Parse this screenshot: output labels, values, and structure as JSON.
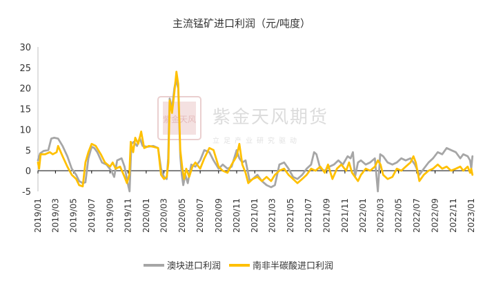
{
  "chart_data": {
    "type": "line",
    "title": "主流锰矿进口利润（元/吨度）",
    "ylim": [
      -5,
      30
    ],
    "yticks": [
      -5,
      0,
      5,
      10,
      15,
      20,
      25,
      30
    ],
    "xlim": [
      "2019-01",
      "2023-01"
    ],
    "xticks": [
      "2019/01",
      "2019/03",
      "2019/05",
      "2019/07",
      "2019/09",
      "2019/11",
      "2020/01",
      "2020/03",
      "2020/05",
      "2020/07",
      "2020/09",
      "2020/11",
      "2021/01",
      "2021/03",
      "2021/05",
      "2021/07",
      "2021/09",
      "2021/11",
      "2022/01",
      "2022/03",
      "2022/05",
      "2022/07",
      "2022/09",
      "2022/11",
      "2023/01"
    ],
    "legend_position": "bottom",
    "series": [
      {
        "name": "澳块进口利润",
        "color": "#a6a6a6",
        "points": [
          [
            "2019-01-01",
            2.5
          ],
          [
            "2019-01-08",
            4.2
          ],
          [
            "2019-01-20",
            4.8
          ],
          [
            "2019-02-05",
            5.0
          ],
          [
            "2019-02-15",
            7.8
          ],
          [
            "2019-02-25",
            8.0
          ],
          [
            "2019-03-10",
            7.8
          ],
          [
            "2019-03-25",
            6.0
          ],
          [
            "2019-04-10",
            3.5
          ],
          [
            "2019-04-25",
            0.5
          ],
          [
            "2019-05-10",
            -1.0
          ],
          [
            "2019-05-20",
            -2.5
          ],
          [
            "2019-06-01",
            -3.0
          ],
          [
            "2019-06-10",
            -2.8
          ],
          [
            "2019-06-20",
            3.0
          ],
          [
            "2019-07-01",
            5.8
          ],
          [
            "2019-07-10",
            5.5
          ],
          [
            "2019-07-20",
            4.5
          ],
          [
            "2019-08-05",
            2.0
          ],
          [
            "2019-08-20",
            1.5
          ],
          [
            "2019-09-05",
            0.0
          ],
          [
            "2019-09-15",
            -1.5
          ],
          [
            "2019-09-25",
            2.5
          ],
          [
            "2019-10-10",
            3.0
          ],
          [
            "2019-10-20",
            1.0
          ],
          [
            "2019-11-01",
            -3.5
          ],
          [
            "2019-11-06",
            -5.0
          ],
          [
            "2019-11-12",
            6.5
          ],
          [
            "2019-11-20",
            7.0
          ],
          [
            "2019-12-01",
            6.0
          ],
          [
            "2019-12-10",
            8.0
          ],
          [
            "2019-12-20",
            6.0
          ],
          [
            "2020-01-05",
            5.8
          ],
          [
            "2020-01-25",
            6.0
          ],
          [
            "2020-02-10",
            5.5
          ],
          [
            "2020-02-20",
            0.5
          ],
          [
            "2020-03-01",
            -1.5
          ],
          [
            "2020-03-10",
            -2.0
          ],
          [
            "2020-03-15",
            3.0
          ],
          [
            "2020-03-20",
            17.5
          ],
          [
            "2020-03-28",
            15.0
          ],
          [
            "2020-04-05",
            20.0
          ],
          [
            "2020-04-10",
            22.0
          ],
          [
            "2020-04-18",
            20.0
          ],
          [
            "2020-04-25",
            3.5
          ],
          [
            "2020-04-30",
            -1.0
          ],
          [
            "2020-05-05",
            -3.5
          ],
          [
            "2020-05-12",
            -1.0
          ],
          [
            "2020-05-20",
            -3.0
          ],
          [
            "2020-06-01",
            1.5
          ],
          [
            "2020-06-15",
            1.0
          ],
          [
            "2020-07-01",
            2.5
          ],
          [
            "2020-07-15",
            5.0
          ],
          [
            "2020-08-01",
            4.5
          ],
          [
            "2020-08-15",
            2.5
          ],
          [
            "2020-09-01",
            0.5
          ],
          [
            "2020-09-15",
            1.5
          ],
          [
            "2020-10-01",
            0.5
          ],
          [
            "2020-10-15",
            1.0
          ],
          [
            "2020-11-01",
            5.0
          ],
          [
            "2020-11-10",
            3.0
          ],
          [
            "2020-11-20",
            2.0
          ],
          [
            "2020-12-01",
            2.5
          ],
          [
            "2020-12-15",
            -2.5
          ],
          [
            "2020-12-25",
            -2.0
          ],
          [
            "2021-01-10",
            -1.0
          ],
          [
            "2021-01-25",
            -2.5
          ],
          [
            "2021-02-10",
            -3.5
          ],
          [
            "2021-02-25",
            -4.0
          ],
          [
            "2021-03-10",
            -3.5
          ],
          [
            "2021-03-25",
            1.5
          ],
          [
            "2021-04-10",
            2.0
          ],
          [
            "2021-04-25",
            0.5
          ],
          [
            "2021-05-10",
            -1.5
          ],
          [
            "2021-05-25",
            -2.0
          ],
          [
            "2021-06-10",
            -1.0
          ],
          [
            "2021-06-25",
            0.5
          ],
          [
            "2021-07-10",
            1.5
          ],
          [
            "2021-07-20",
            4.5
          ],
          [
            "2021-07-28",
            4.0
          ],
          [
            "2021-08-10",
            0.5
          ],
          [
            "2021-08-25",
            0.0
          ],
          [
            "2021-09-10",
            1.0
          ],
          [
            "2021-09-25",
            1.5
          ],
          [
            "2021-10-10",
            2.5
          ],
          [
            "2021-10-25",
            1.5
          ],
          [
            "2021-11-10",
            3.5
          ],
          [
            "2021-11-20",
            3.0
          ],
          [
            "2021-11-28",
            4.5
          ],
          [
            "2021-12-05",
            -1.5
          ],
          [
            "2021-12-15",
            2.0
          ],
          [
            "2021-12-25",
            2.5
          ],
          [
            "2022-01-10",
            1.5
          ],
          [
            "2022-01-25",
            2.0
          ],
          [
            "2022-02-10",
            3.0
          ],
          [
            "2022-02-20",
            -5.0
          ],
          [
            "2022-02-28",
            4.0
          ],
          [
            "2022-03-10",
            3.5
          ],
          [
            "2022-03-25",
            2.0
          ],
          [
            "2022-04-10",
            1.5
          ],
          [
            "2022-04-25",
            2.0
          ],
          [
            "2022-05-10",
            3.0
          ],
          [
            "2022-05-25",
            2.5
          ],
          [
            "2022-06-10",
            3.0
          ],
          [
            "2022-06-25",
            1.5
          ],
          [
            "2022-07-10",
            -1.0
          ],
          [
            "2022-07-25",
            0.5
          ],
          [
            "2022-08-10",
            2.0
          ],
          [
            "2022-08-25",
            3.0
          ],
          [
            "2022-09-10",
            4.5
          ],
          [
            "2022-09-25",
            4.0
          ],
          [
            "2022-10-10",
            5.5
          ],
          [
            "2022-10-25",
            5.0
          ],
          [
            "2022-11-10",
            4.5
          ],
          [
            "2022-11-25",
            3.0
          ],
          [
            "2022-12-05",
            4.0
          ],
          [
            "2022-12-20",
            3.5
          ],
          [
            "2022-12-28",
            2.5
          ],
          [
            "2023-01-01",
            0.5
          ],
          [
            "2023-01-05",
            3.5
          ]
        ]
      },
      {
        "name": "南非半碳酸进口利润",
        "color": "#ffc000",
        "points": [
          [
            "2019-01-01",
            2.0
          ],
          [
            "2019-01-05",
            0.5
          ],
          [
            "2019-01-10",
            4.0
          ],
          [
            "2019-01-25",
            4.0
          ],
          [
            "2019-02-10",
            4.5
          ],
          [
            "2019-02-20",
            4.0
          ],
          [
            "2019-03-05",
            4.5
          ],
          [
            "2019-03-10",
            6.0
          ],
          [
            "2019-03-25",
            3.5
          ],
          [
            "2019-04-10",
            1.0
          ],
          [
            "2019-04-25",
            -1.0
          ],
          [
            "2019-05-10",
            -2.0
          ],
          [
            "2019-05-20",
            -3.5
          ],
          [
            "2019-06-01",
            -3.8
          ],
          [
            "2019-06-10",
            2.0
          ],
          [
            "2019-06-20",
            4.5
          ],
          [
            "2019-07-01",
            6.5
          ],
          [
            "2019-07-15",
            6.0
          ],
          [
            "2019-08-01",
            4.0
          ],
          [
            "2019-08-15",
            2.0
          ],
          [
            "2019-09-01",
            1.0
          ],
          [
            "2019-09-10",
            2.0
          ],
          [
            "2019-09-20",
            0.5
          ],
          [
            "2019-10-05",
            1.0
          ],
          [
            "2019-10-20",
            -1.5
          ],
          [
            "2019-10-28",
            -3.0
          ],
          [
            "2019-11-05",
            -1.0
          ],
          [
            "2019-11-10",
            7.0
          ],
          [
            "2019-11-18",
            4.5
          ],
          [
            "2019-11-25",
            8.0
          ],
          [
            "2019-12-05",
            6.5
          ],
          [
            "2019-12-15",
            9.5
          ],
          [
            "2019-12-25",
            5.5
          ],
          [
            "2020-01-10",
            6.0
          ],
          [
            "2020-01-25",
            5.8
          ],
          [
            "2020-02-10",
            5.5
          ],
          [
            "2020-02-20",
            -1.0
          ],
          [
            "2020-03-01",
            -2.0
          ],
          [
            "2020-03-10",
            -1.5
          ],
          [
            "2020-03-16",
            2.0
          ],
          [
            "2020-03-20",
            17.0
          ],
          [
            "2020-03-28",
            14.0
          ],
          [
            "2020-04-05",
            19.0
          ],
          [
            "2020-04-12",
            24.0
          ],
          [
            "2020-04-18",
            21.0
          ],
          [
            "2020-04-25",
            5.0
          ],
          [
            "2020-05-02",
            0.5
          ],
          [
            "2020-05-08",
            -2.0
          ],
          [
            "2020-05-15",
            0.5
          ],
          [
            "2020-05-25",
            -1.5
          ],
          [
            "2020-06-05",
            1.0
          ],
          [
            "2020-06-15",
            2.0
          ],
          [
            "2020-07-01",
            0.5
          ],
          [
            "2020-07-15",
            3.0
          ],
          [
            "2020-08-01",
            5.5
          ],
          [
            "2020-08-15",
            5.0
          ],
          [
            "2020-09-01",
            1.0
          ],
          [
            "2020-09-15",
            0.0
          ],
          [
            "2020-10-01",
            -0.5
          ],
          [
            "2020-10-15",
            1.5
          ],
          [
            "2020-11-01",
            3.5
          ],
          [
            "2020-11-10",
            6.5
          ],
          [
            "2020-11-20",
            1.5
          ],
          [
            "2020-12-01",
            -0.5
          ],
          [
            "2020-12-10",
            -3.0
          ],
          [
            "2020-12-25",
            -2.0
          ],
          [
            "2021-01-10",
            -1.5
          ],
          [
            "2021-01-25",
            -2.5
          ],
          [
            "2021-02-10",
            -1.5
          ],
          [
            "2021-02-25",
            -2.5
          ],
          [
            "2021-03-10",
            -1.0
          ],
          [
            "2021-03-25",
            0.0
          ],
          [
            "2021-04-10",
            0.5
          ],
          [
            "2021-04-25",
            -1.0
          ],
          [
            "2021-05-10",
            -2.0
          ],
          [
            "2021-05-25",
            -3.0
          ],
          [
            "2021-06-10",
            -2.0
          ],
          [
            "2021-06-25",
            -1.0
          ],
          [
            "2021-07-10",
            0.5
          ],
          [
            "2021-07-25",
            0.0
          ],
          [
            "2021-08-10",
            1.0
          ],
          [
            "2021-08-25",
            -0.5
          ],
          [
            "2021-09-05",
            1.5
          ],
          [
            "2021-09-20",
            -2.0
          ],
          [
            "2021-10-05",
            0.5
          ],
          [
            "2021-10-20",
            1.5
          ],
          [
            "2021-11-05",
            0.0
          ],
          [
            "2021-11-15",
            2.0
          ],
          [
            "2021-11-25",
            -0.5
          ],
          [
            "2021-12-05",
            -1.5
          ],
          [
            "2021-12-15",
            -2.5
          ],
          [
            "2021-12-25",
            -1.0
          ],
          [
            "2022-01-10",
            0.5
          ],
          [
            "2022-01-25",
            0.0
          ],
          [
            "2022-02-10",
            1.0
          ],
          [
            "2022-02-20",
            2.5
          ],
          [
            "2022-03-01",
            1.5
          ],
          [
            "2022-03-10",
            -1.0
          ],
          [
            "2022-03-25",
            -2.0
          ],
          [
            "2022-04-10",
            -1.5
          ],
          [
            "2022-04-25",
            0.5
          ],
          [
            "2022-05-10",
            0.0
          ],
          [
            "2022-05-25",
            1.0
          ],
          [
            "2022-06-10",
            2.0
          ],
          [
            "2022-06-20",
            3.5
          ],
          [
            "2022-06-28",
            2.0
          ],
          [
            "2022-07-10",
            -2.5
          ],
          [
            "2022-07-25",
            -1.0
          ],
          [
            "2022-08-10",
            0.0
          ],
          [
            "2022-08-25",
            0.5
          ],
          [
            "2022-09-10",
            1.5
          ],
          [
            "2022-09-25",
            0.5
          ],
          [
            "2022-10-10",
            1.0
          ],
          [
            "2022-10-25",
            0.0
          ],
          [
            "2022-11-10",
            0.5
          ],
          [
            "2022-11-25",
            1.0
          ],
          [
            "2022-12-05",
            0.0
          ],
          [
            "2022-12-20",
            1.0
          ],
          [
            "2022-12-28",
            -0.5
          ],
          [
            "2023-01-01",
            0.5
          ],
          [
            "2023-01-05",
            -1.0
          ]
        ]
      }
    ]
  },
  "watermark": {
    "brand": "紫金天风期货",
    "slogan": "立足产业研究驱动",
    "seal_text": "紫金天风"
  }
}
